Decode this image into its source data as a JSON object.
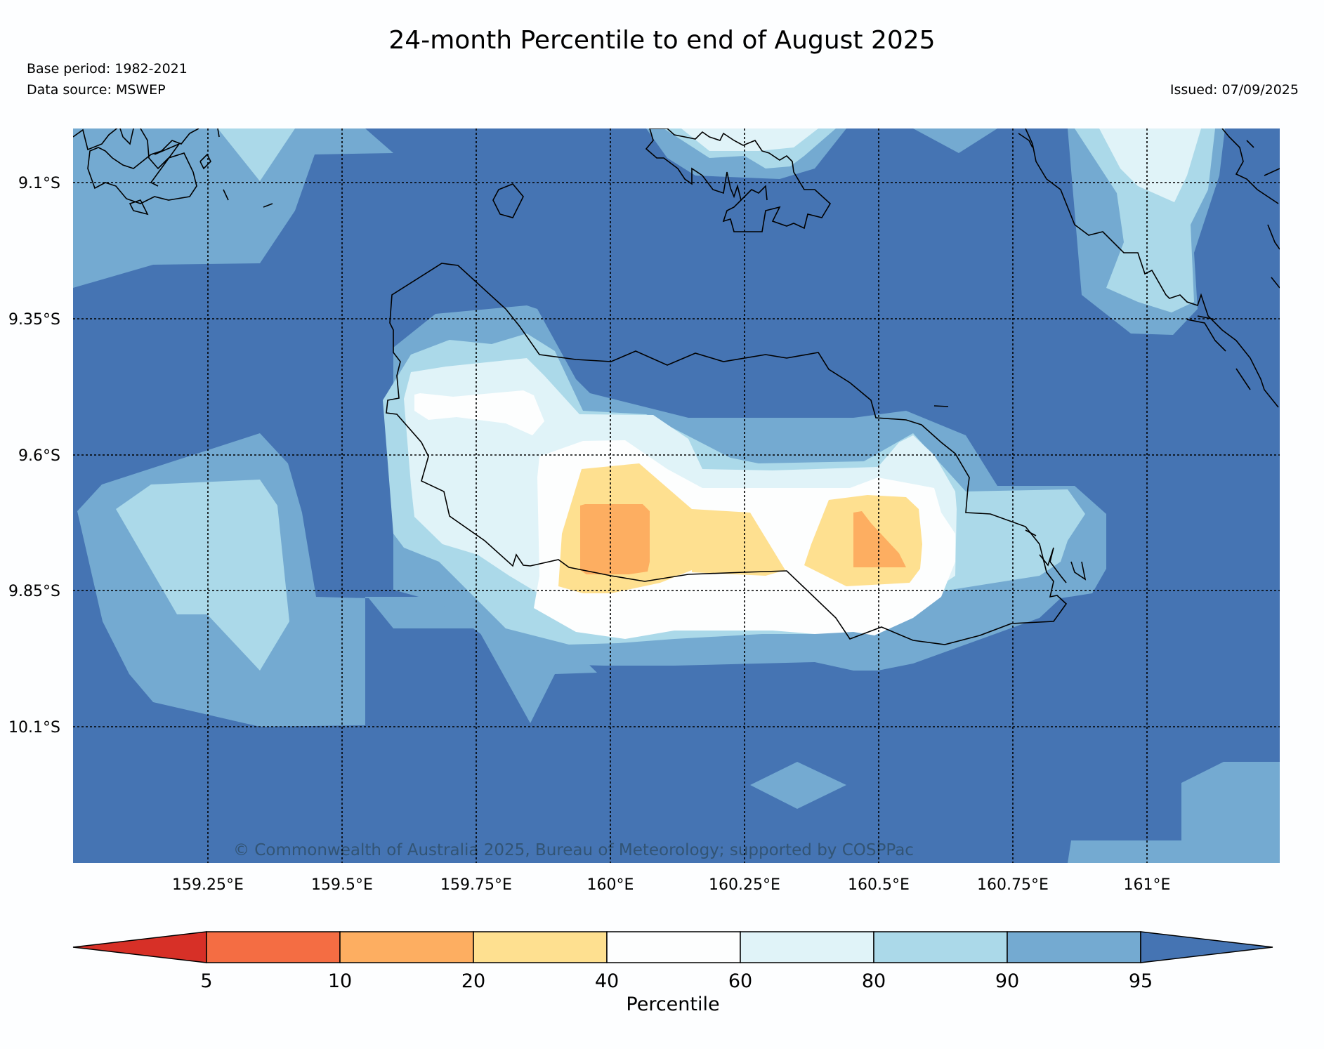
{
  "title": "24-month Percentile to end of August 2025",
  "base_period": "Base period: 1982-2021",
  "data_source": "Data source: MSWEP",
  "issued": "Issued: 07/09/2025",
  "copyright": "© Commonwealth of Australia 2025, Bureau of Meteorology; supported by COSPPac",
  "map": {
    "lon_range": [
      159.0,
      161.25
    ],
    "lat_range": [
      -10.35,
      -9.0
    ],
    "lon_ticks": [
      "159.25°E",
      "159.5°E",
      "159.75°E",
      "160°E",
      "160.25°E",
      "160.5°E",
      "160.75°E",
      "161°E"
    ],
    "lat_ticks": [
      "9.1°S",
      "9.35°S",
      "9.6°S",
      "9.85°S",
      "10.1°S"
    ],
    "region_colors": {
      "gt95": "#4574b3",
      "p90_95": "#74aad1",
      "p80_90": "#abd9e9",
      "p60_80": "#e0f3f8",
      "p40_60": "#fdfefe",
      "p20_40": "#fee090",
      "p10_20": "#fdae61",
      "p5_10": "#f46d43",
      "lt5": "#d73027"
    }
  },
  "colorbar": {
    "label": "Percentile",
    "ticks": [
      "5",
      "10",
      "20",
      "40",
      "60",
      "80",
      "90",
      "95"
    ],
    "segment_colors": [
      "#f46d43",
      "#fdae61",
      "#fee090",
      "#fdfefe",
      "#e0f3f8",
      "#abd9e9",
      "#74aad1"
    ],
    "low_extend_color": "#d73027",
    "high_extend_color": "#4574b3"
  }
}
